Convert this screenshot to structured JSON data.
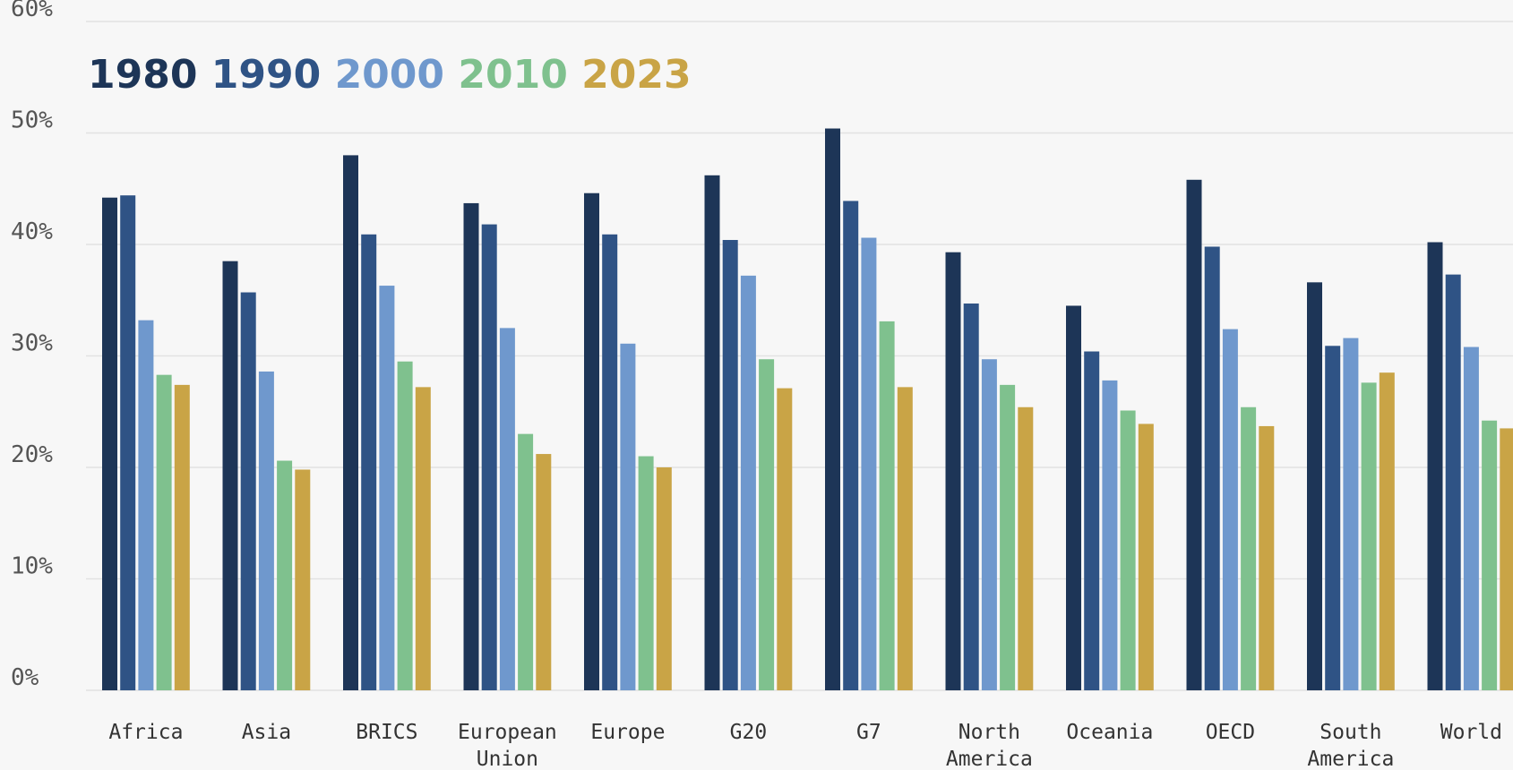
{
  "chart_data": {
    "type": "bar",
    "ylim": [
      0,
      60
    ],
    "y_ticks": [
      "0%",
      "10%",
      "20%",
      "30%",
      "40%",
      "50%",
      "60%"
    ],
    "grid": true,
    "legend_position": "top-left",
    "categories": [
      "Africa",
      "Asia",
      "BRICS",
      "European Union",
      "Europe",
      "G20",
      "G7",
      "North America",
      "Oceania",
      "OECD",
      "South America",
      "World"
    ],
    "category_lines": [
      [
        "Africa"
      ],
      [
        "Asia"
      ],
      [
        "BRICS"
      ],
      [
        "European",
        "Union"
      ],
      [
        "Europe"
      ],
      [
        "G20"
      ],
      [
        "G7"
      ],
      [
        "North",
        "America"
      ],
      [
        "Oceania"
      ],
      [
        "OECD"
      ],
      [
        "South",
        "America"
      ],
      [
        "World"
      ]
    ],
    "series": [
      {
        "name": "1980",
        "color": "#1d3557",
        "values": [
          44.2,
          38.5,
          48.0,
          43.7,
          44.6,
          46.2,
          50.4,
          39.3,
          34.5,
          45.8,
          36.6,
          40.2
        ]
      },
      {
        "name": "1990",
        "color": "#2f5385",
        "values": [
          44.4,
          35.7,
          40.9,
          41.8,
          40.9,
          40.4,
          43.9,
          34.7,
          30.4,
          39.8,
          30.9,
          37.3
        ]
      },
      {
        "name": "2000",
        "color": "#6f98cd",
        "values": [
          33.2,
          28.6,
          36.3,
          32.5,
          31.1,
          37.2,
          40.6,
          29.7,
          27.8,
          32.4,
          31.6,
          30.8
        ]
      },
      {
        "name": "2010",
        "color": "#7fc18e",
        "values": [
          28.3,
          20.6,
          29.5,
          23.0,
          21.0,
          29.7,
          33.1,
          27.4,
          25.1,
          25.4,
          27.6,
          24.2
        ]
      },
      {
        "name": "2023",
        "color": "#c9a446",
        "values": [
          27.4,
          19.8,
          27.2,
          21.2,
          20.0,
          27.1,
          27.2,
          25.4,
          23.9,
          23.7,
          28.5,
          23.5
        ]
      }
    ]
  }
}
